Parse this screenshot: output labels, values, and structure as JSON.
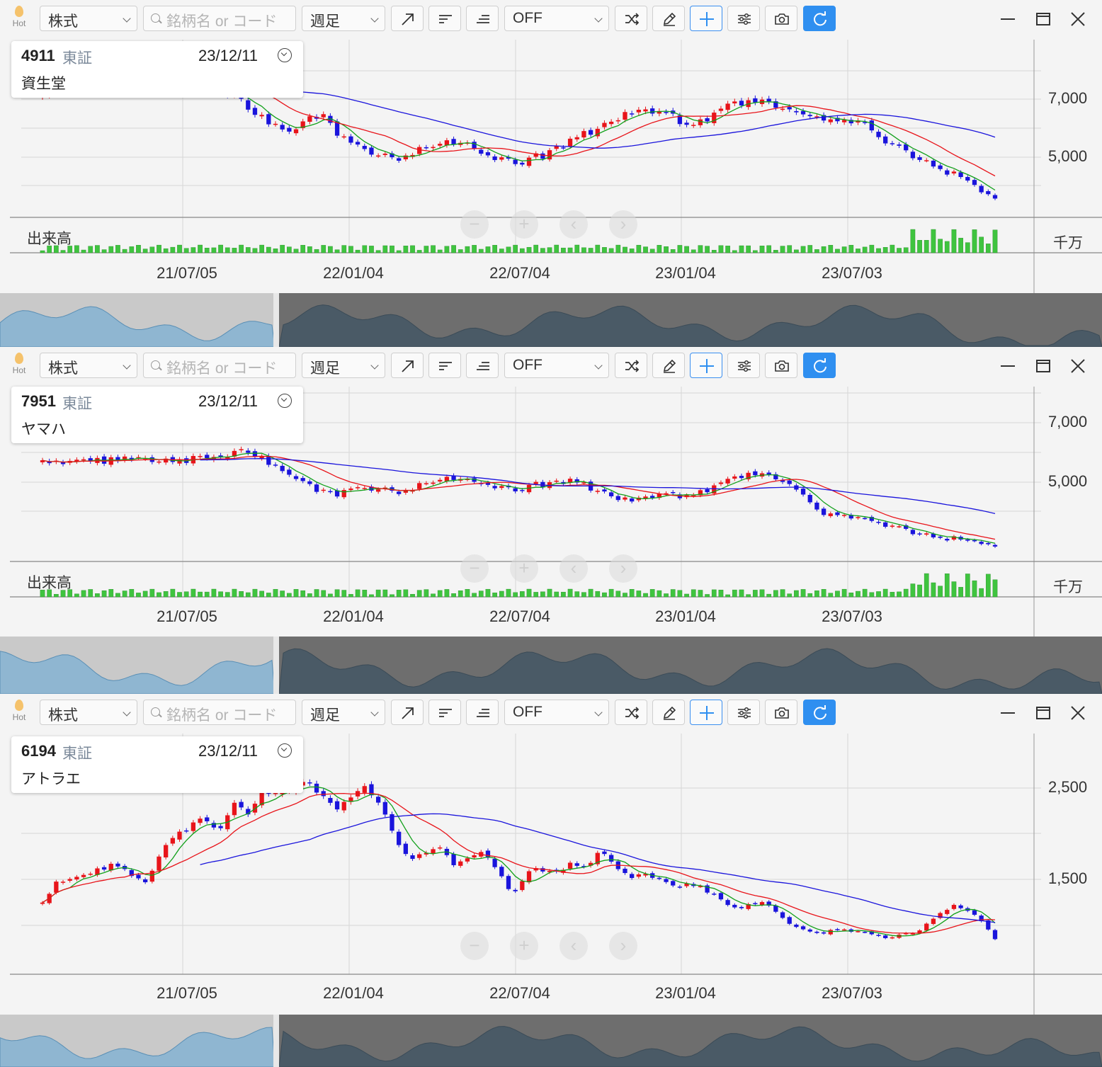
{
  "toolbar": {
    "hot_label": "Hot",
    "market_select": "株式",
    "search_placeholder": "銘柄名 or コード",
    "period_select": "週足",
    "indicator_select": "OFF"
  },
  "time_labels": [
    "21/07/05",
    "22/01/04",
    "22/07/04",
    "23/01/04",
    "23/07/03"
  ],
  "volume_label": "出来高",
  "volume_unit": "千万",
  "colors": {
    "up": "#e8141a",
    "down": "#1a14dc",
    "ma_short": "#11a01a",
    "ma_mid": "#e8141a",
    "ma_long": "#1a14dc",
    "volume": "#3fc43f",
    "accent": "#2f8ff0"
  },
  "panels": [
    {
      "code": "4911",
      "exchange": "東証",
      "date": "23/12/11",
      "name": "資生堂",
      "y_labels": [
        "7,000",
        "5,000"
      ],
      "has_volume": true
    },
    {
      "code": "7951",
      "exchange": "東証",
      "date": "23/12/11",
      "name": "ヤマハ",
      "y_labels": [
        "7,000",
        "5,000"
      ],
      "has_volume": true
    },
    {
      "code": "6194",
      "exchange": "東証",
      "date": "23/12/11",
      "name": "アトラエ",
      "y_labels": [
        "2,500",
        "1,500"
      ],
      "has_volume": false
    }
  ],
  "chart_data": [
    {
      "type": "candlestick",
      "title": "4911 資生堂",
      "x_ticks": [
        "21/07/05",
        "22/01/04",
        "22/07/04",
        "23/01/04",
        "23/07/03"
      ],
      "y_ticks": [
        7000,
        5000
      ],
      "close_series": [
        6900,
        7150,
        7400,
        7300,
        7200,
        7000,
        6950,
        7100,
        7300,
        7500,
        7400,
        7200,
        7000,
        6750,
        6500,
        6200,
        5900,
        5700,
        6100,
        6300,
        5800,
        5400,
        5300,
        5100,
        5000,
        5100,
        5300,
        5400,
        5500,
        5400,
        5200,
        5000,
        4900,
        4950,
        5100,
        5300,
        5500,
        5700,
        5900,
        6100,
        6300,
        6400,
        6350,
        6200,
        6000,
        6100,
        6300,
        6500,
        6600,
        6700,
        6500,
        6400,
        6300,
        6200,
        6100,
        6050,
        6000,
        5600,
        5400,
        5200,
        5000,
        4800,
        4600,
        4400,
        4100,
        3950
      ],
      "ma_labels": [
        "short",
        "mid",
        "long"
      ]
    },
    {
      "type": "candlestick",
      "title": "7951 ヤマハ",
      "x_ticks": [
        "21/07/05",
        "22/01/04",
        "22/07/04",
        "23/01/04",
        "23/07/03"
      ],
      "y_ticks": [
        7000,
        5000
      ],
      "close_series": [
        6200,
        6000,
        6150,
        6200,
        6100,
        6150,
        6250,
        6200,
        6100,
        6050,
        6150,
        6200,
        6250,
        6300,
        6450,
        6200,
        5900,
        5600,
        5400,
        5200,
        5100,
        5200,
        5300,
        5250,
        5150,
        5200,
        5400,
        5500,
        5600,
        5500,
        5450,
        5300,
        5200,
        5300,
        5400,
        5450,
        5500,
        5350,
        5200,
        5000,
        4900,
        5000,
        5100,
        5050,
        5100,
        5200,
        5350,
        5500,
        5700,
        5750,
        5600,
        5400,
        5100,
        4550,
        4500,
        4400,
        4300,
        4200,
        4100,
        4000,
        3900,
        3800,
        3750,
        3650,
        3600,
        3550
      ],
      "ma_labels": [
        "short",
        "mid",
        "long"
      ]
    },
    {
      "type": "candlestick",
      "title": "6194 アトラエ",
      "x_ticks": [
        "21/07/05",
        "22/01/04",
        "22/07/04",
        "23/01/04",
        "23/07/03"
      ],
      "y_ticks": [
        2500,
        1500
      ],
      "close_series": [
        1400,
        1600,
        1650,
        1700,
        1750,
        1800,
        1700,
        1600,
        1900,
        2100,
        2200,
        2300,
        2150,
        2450,
        2350,
        2600,
        2550,
        2600,
        2700,
        2550,
        2400,
        2500,
        2650,
        2450,
        2100,
        1850,
        1900,
        2000,
        1800,
        1850,
        1950,
        1750,
        1450,
        1700,
        1750,
        1700,
        1800,
        1750,
        1950,
        1800,
        1650,
        1700,
        1650,
        1550,
        1600,
        1550,
        1450,
        1300,
        1350,
        1400,
        1300,
        1150,
        1100,
        1050,
        1100,
        1080,
        1050,
        1020,
        1000,
        1050,
        1100,
        1250,
        1350,
        1300,
        1200,
        1000
      ]
    }
  ]
}
